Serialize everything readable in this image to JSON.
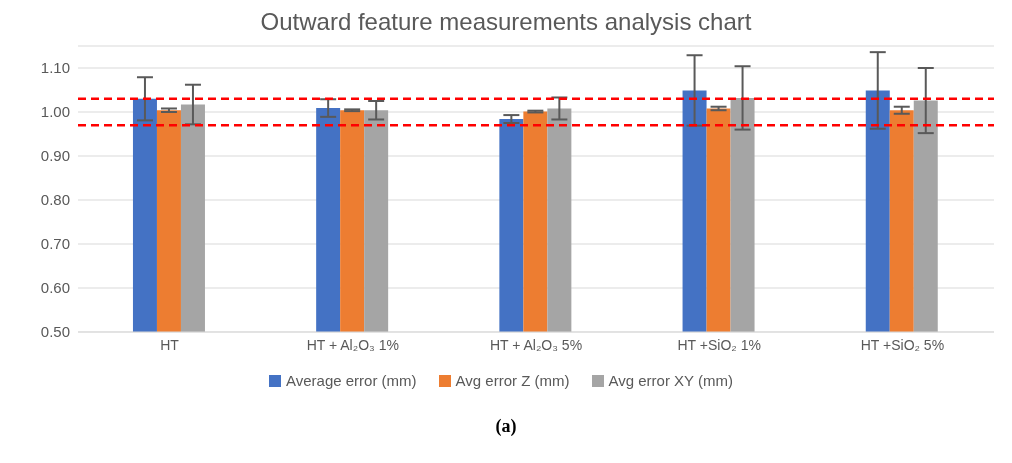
{
  "chart_data": {
    "type": "bar",
    "title": "Outward feature measurements analysis chart",
    "categories": [
      "HT",
      "HT + Al₂O₃ 1%",
      "HT + Al₂O₃ 5%",
      "HT +SiO₂ 1%",
      "HT +SiO₂ 5%"
    ],
    "series": [
      {
        "name": "Average error (mm)",
        "color": "#4472c4",
        "values": [
          1.03,
          1.009,
          0.984,
          1.049,
          1.049
        ],
        "errors": [
          0.049,
          0.02,
          0.009,
          0.08,
          0.087
        ]
      },
      {
        "name": "Avg error Z (mm)",
        "color": "#ed7d31",
        "values": [
          1.004,
          1.004,
          1.001,
          1.008,
          1.004
        ],
        "errors": [
          0.004,
          0.002,
          0.002,
          0.004,
          0.008
        ]
      },
      {
        "name": "Avg error XY (mm)",
        "color": "#a5a5a5",
        "values": [
          1.017,
          1.004,
          1.008,
          1.032,
          1.026
        ],
        "errors": [
          0.045,
          0.021,
          0.025,
          0.072,
          0.074
        ]
      }
    ],
    "ylim": [
      0.5,
      1.15
    ],
    "yticks": [
      {
        "value": 0.5,
        "label": "0.50"
      },
      {
        "value": 0.6,
        "label": "0.60"
      },
      {
        "value": 0.7,
        "label": "0.70"
      },
      {
        "value": 0.8,
        "label": "0.80"
      },
      {
        "value": 0.9,
        "label": "0.90"
      },
      {
        "value": 1.0,
        "label": "1.00"
      },
      {
        "value": 1.1,
        "label": "1.10"
      }
    ],
    "grid": "y",
    "legend": "bottom",
    "ref_lines": [
      {
        "axis": "y",
        "value": 1.03,
        "color": "#ff0000",
        "line_style": "dashed"
      },
      {
        "axis": "y",
        "value": 0.97,
        "color": "#ff0000",
        "line_style": "dashed"
      }
    ],
    "annotations": [
      "(a)"
    ]
  }
}
